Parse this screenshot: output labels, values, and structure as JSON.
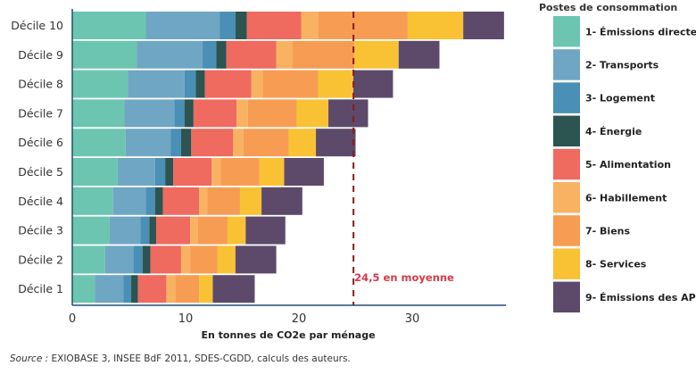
{
  "chart_data": {
    "type": "bar",
    "orientation": "horizontal",
    "stacked": true,
    "title": "",
    "xlabel": "En tonnes de CO2e par ménage",
    "ylabel": "",
    "xlim": [
      0,
      40
    ],
    "x_ticks": [
      0,
      10,
      20,
      30
    ],
    "grid": false,
    "categories": [
      "Décile 10",
      "Décile 9",
      "Décile 8",
      "Décile 7",
      "Décile 6",
      "Décile 5",
      "Décile 4",
      "Décile 3",
      "Décile 2",
      "Décile 1"
    ],
    "series": [
      {
        "name": "1- Émissions directe",
        "color": "#6cc5b0",
        "values": [
          6.5,
          5.7,
          4.9,
          4.6,
          4.7,
          4.0,
          3.6,
          3.3,
          2.9,
          2.0
        ]
      },
      {
        "name": "2- Transports",
        "color": "#6fa6c4",
        "values": [
          6.5,
          5.8,
          5.0,
          4.4,
          4.0,
          3.3,
          2.9,
          2.7,
          2.5,
          2.5
        ]
      },
      {
        "name": "3- Logement",
        "color": "#4a8fb5",
        "values": [
          1.4,
          1.2,
          1.0,
          0.9,
          0.9,
          0.9,
          0.8,
          0.8,
          0.8,
          0.7
        ]
      },
      {
        "name": "4- Énergie",
        "color": "#2c5450",
        "values": [
          1.0,
          0.9,
          0.8,
          0.8,
          0.9,
          0.7,
          0.7,
          0.6,
          0.7,
          0.6
        ]
      },
      {
        "name": "5- Alimentation",
        "color": "#ef6a5f",
        "values": [
          4.8,
          4.4,
          4.1,
          3.8,
          3.7,
          3.4,
          3.2,
          3.0,
          2.7,
          2.5
        ]
      },
      {
        "name": "6- Habillement",
        "color": "#f8b262",
        "values": [
          1.5,
          1.4,
          1.0,
          1.0,
          0.9,
          0.8,
          0.7,
          0.7,
          0.8,
          0.8
        ]
      },
      {
        "name": "7- Biens",
        "color": "#f69d53",
        "values": [
          7.9,
          5.5,
          4.9,
          4.3,
          4.0,
          3.4,
          2.9,
          2.6,
          2.4,
          2.1
        ]
      },
      {
        "name": "8- Services",
        "color": "#f8c234",
        "values": [
          4.9,
          3.9,
          3.1,
          2.8,
          2.4,
          2.2,
          1.9,
          1.6,
          1.6,
          1.2
        ]
      },
      {
        "name": "9- Émissions des AP",
        "color": "#5d4a6b",
        "values": [
          3.6,
          3.6,
          3.5,
          3.5,
          3.5,
          3.5,
          3.6,
          3.5,
          3.6,
          3.7
        ]
      }
    ],
    "average_line": {
      "value": 24.5,
      "label": "24,5 en moyenne",
      "color": "#8b1a1a",
      "label_color": "#d63a4a"
    },
    "legend": {
      "title": "Postes de consommation",
      "placement": "right"
    }
  },
  "source": {
    "prefix": "Source :",
    "text": " EXIOBASE 3, INSEE BdF 2011, SDES-CGDD, calculs des auteurs."
  }
}
